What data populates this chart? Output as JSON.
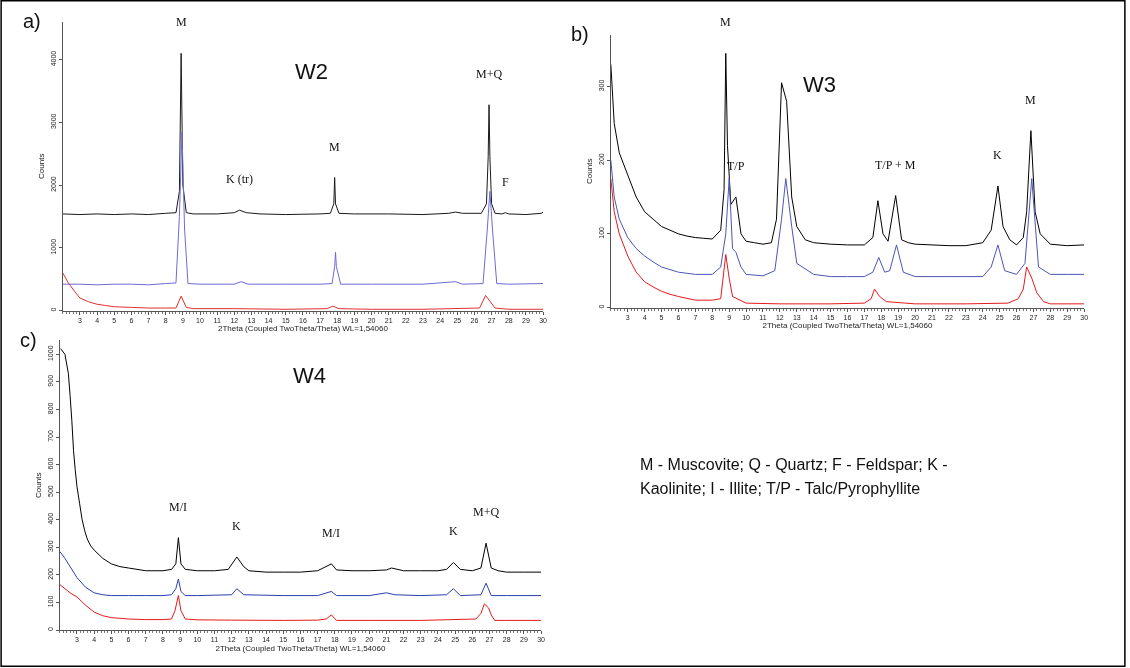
{
  "chart_data": [
    {
      "type": "line",
      "title": "W2",
      "xlabel": "2Theta (Coupled TwoTheta/Theta) WL=1,54060",
      "ylabel": "Counts",
      "xlim": [
        2,
        30
      ],
      "xticks": [
        3,
        4,
        5,
        6,
        7,
        8,
        9,
        10,
        11,
        12,
        13,
        14,
        15,
        16,
        17,
        18,
        19,
        20,
        21,
        22,
        23,
        24,
        25,
        26,
        27,
        28,
        29,
        30
      ],
      "ylim": [
        0,
        4600
      ],
      "yticks": [
        0,
        1000,
        2000,
        3000,
        4000
      ],
      "annotations": [
        "a)",
        {
          "text": "M",
          "x": 8.9,
          "y": 4100
        },
        {
          "text": "K (tr)",
          "x": 12.3,
          "y": 1600
        },
        {
          "text": "M",
          "x": 17.85,
          "y": 2120
        },
        {
          "text": "M+Q",
          "x": 26.85,
          "y": 3280
        },
        {
          "text": "F",
          "x": 27.8,
          "y": 1560
        }
      ],
      "series": [
        {
          "color": "#1a1a1a",
          "x": [
            2.0,
            3,
            4,
            5,
            6,
            7,
            8,
            8.6,
            8.8,
            8.9,
            9.0,
            9.2,
            9.6,
            11,
            12,
            12.3,
            12.7,
            13.5,
            15,
            17,
            17.6,
            17.8,
            17.85,
            17.9,
            18.1,
            19,
            21,
            23,
            24.5,
            24.9,
            25.3,
            26.4,
            26.7,
            26.8,
            26.85,
            26.9,
            27.0,
            27.2,
            27.6,
            27.8,
            28,
            29,
            29.9,
            30
          ],
          "values": [
            1540,
            1530,
            1540,
            1530,
            1540,
            1530,
            1550,
            1560,
            1900,
            4100,
            2000,
            1560,
            1540,
            1540,
            1560,
            1600,
            1560,
            1540,
            1530,
            1540,
            1550,
            1700,
            2120,
            1700,
            1550,
            1540,
            1540,
            1530,
            1550,
            1570,
            1550,
            1550,
            1700,
            2450,
            3280,
            2450,
            1700,
            1550,
            1540,
            1560,
            1540,
            1530,
            1550,
            1570
          ]
        },
        {
          "color": "#6b6bd6",
          "x": [
            2.0,
            3,
            4,
            5,
            6,
            7,
            8,
            8.6,
            8.8,
            8.95,
            9.1,
            9.3,
            10,
            12,
            12.4,
            12.8,
            15,
            17,
            17.7,
            17.85,
            17.9,
            17.95,
            18.2,
            20,
            23,
            24.9,
            25.3,
            26.5,
            26.75,
            26.9,
            27.05,
            27.3,
            28,
            30
          ],
          "values": [
            420,
            420,
            410,
            420,
            420,
            410,
            430,
            440,
            1500,
            2850,
            1300,
            430,
            420,
            420,
            460,
            420,
            420,
            420,
            430,
            700,
            930,
            700,
            420,
            420,
            420,
            460,
            420,
            430,
            1300,
            1900,
            1300,
            430,
            420,
            430
          ]
        },
        {
          "color": "#e0302e",
          "x": [
            2.0,
            2.3,
            2.7,
            3,
            3.5,
            4,
            4.5,
            5,
            6,
            7,
            8,
            8.6,
            8.9,
            9.2,
            9.6,
            12,
            15,
            17.4,
            17.75,
            18.1,
            20,
            23,
            26.3,
            26.65,
            26.9,
            27.2,
            28,
            30
          ],
          "values": [
            600,
            450,
            300,
            200,
            140,
            100,
            80,
            60,
            50,
            40,
            40,
            40,
            230,
            50,
            30,
            30,
            20,
            30,
            70,
            30,
            20,
            20,
            40,
            240,
            150,
            40,
            20,
            20
          ]
        }
      ]
    },
    {
      "type": "line",
      "title": "W3",
      "xlabel": "2Theta (Coupled TwoTheta/Theta) WL=1,54060",
      "ylabel": "Counts",
      "xlim": [
        2,
        30
      ],
      "xticks": [
        3,
        4,
        5,
        6,
        7,
        8,
        9,
        10,
        11,
        12,
        13,
        14,
        15,
        16,
        17,
        18,
        19,
        20,
        21,
        22,
        23,
        24,
        25,
        26,
        27,
        28,
        29,
        30
      ],
      "ylim": [
        0,
        370
      ],
      "yticks": [
        0,
        100,
        200,
        300
      ],
      "annotations": [
        "b)",
        {
          "text": "M",
          "x": 8.8,
          "y": 345
        },
        {
          "text": "T/P",
          "x": 9.4,
          "y": 150
        },
        {
          "text": "T/P + M",
          "x": 18.85,
          "y": 152
        },
        {
          "text": "K",
          "x": 24.9,
          "y": 165
        },
        {
          "text": "M",
          "x": 26.85,
          "y": 240
        }
      ],
      "series": [
        {
          "color": "#000000",
          "x": [
            2.0,
            2.2,
            2.5,
            3,
            3.5,
            4,
            4.5,
            5,
            5.5,
            6,
            6.5,
            7,
            7.5,
            8,
            8.5,
            8.7,
            8.8,
            8.9,
            9.1,
            9.4,
            9.7,
            10,
            10.5,
            11,
            11.5,
            11.8,
            12.1,
            12.4,
            12.7,
            13,
            13.5,
            14,
            15,
            16,
            17,
            17.5,
            17.8,
            18.1,
            18.4,
            18.85,
            19.2,
            19.6,
            20,
            21,
            22,
            23,
            24,
            24.5,
            24.9,
            25.2,
            25.6,
            26,
            26.4,
            26.6,
            26.85,
            27.1,
            27.4,
            28,
            29,
            30
          ],
          "values": [
            330,
            250,
            210,
            180,
            150,
            130,
            120,
            110,
            105,
            100,
            97,
            95,
            94,
            93,
            105,
            160,
            345,
            220,
            140,
            150,
            100,
            90,
            88,
            86,
            88,
            120,
            305,
            280,
            150,
            110,
            92,
            88,
            86,
            85,
            85,
            95,
            145,
            100,
            90,
            152,
            92,
            88,
            86,
            85,
            84,
            84,
            88,
            105,
            165,
            110,
            92,
            85,
            95,
            130,
            240,
            130,
            100,
            86,
            84,
            85
          ]
        },
        {
          "color": "#4b56b8",
          "x": [
            2.0,
            2.2,
            2.5,
            3,
            3.5,
            4,
            4.5,
            5,
            6,
            7,
            8,
            8.5,
            8.8,
            9.0,
            9.2,
            9.4,
            9.7,
            10,
            11,
            11.7,
            12.1,
            12.35,
            12.7,
            13,
            14,
            15,
            16,
            17,
            17.5,
            17.85,
            18.2,
            18.5,
            18.9,
            19.3,
            20,
            21,
            22,
            23,
            24,
            24.5,
            24.9,
            25.3,
            26,
            26.5,
            26.9,
            27.3,
            28,
            29,
            30
          ],
          "values": [
            200,
            150,
            120,
            95,
            80,
            70,
            62,
            55,
            48,
            45,
            45,
            55,
            100,
            175,
            80,
            75,
            55,
            45,
            43,
            50,
            120,
            175,
            110,
            60,
            45,
            42,
            42,
            42,
            48,
            68,
            48,
            50,
            85,
            48,
            42,
            42,
            42,
            42,
            42,
            55,
            85,
            50,
            45,
            60,
            175,
            55,
            45,
            45,
            45
          ]
        },
        {
          "color": "#e31a1c",
          "x": [
            2.0,
            2.2,
            2.5,
            3,
            3.5,
            4,
            4.5,
            5,
            5.5,
            6,
            7,
            8,
            8.5,
            8.8,
            9.0,
            9.2,
            10,
            12,
            15,
            17,
            17.4,
            17.6,
            17.9,
            18.3,
            20,
            23,
            25.5,
            26.1,
            26.4,
            26.6,
            26.9,
            27.2,
            27.6,
            28,
            30
          ],
          "values": [
            175,
            130,
            100,
            70,
            48,
            35,
            28,
            22,
            18,
            15,
            10,
            10,
            12,
            72,
            40,
            15,
            6,
            5,
            5,
            6,
            12,
            25,
            15,
            8,
            5,
            5,
            6,
            12,
            25,
            55,
            40,
            20,
            8,
            5,
            5
          ]
        }
      ]
    },
    {
      "type": "line",
      "title": "W4",
      "xlabel": "2Theta (Coupled TwoTheta/Theta) WL=1,54060",
      "ylabel": "Counts",
      "xlim": [
        2,
        30
      ],
      "xticks": [
        3,
        4,
        5,
        6,
        7,
        8,
        9,
        10,
        11,
        12,
        13,
        14,
        15,
        16,
        17,
        18,
        19,
        20,
        21,
        22,
        23,
        24,
        25,
        26,
        27,
        28,
        29,
        30
      ],
      "ylim": [
        0,
        1050
      ],
      "yticks": [
        0,
        100,
        200,
        300,
        400,
        500,
        600,
        700,
        800,
        900,
        1000
      ],
      "annotations": [
        "c)",
        {
          "text": "M/I",
          "x": 8.9,
          "y": 335
        },
        {
          "text": "K",
          "x": 12.3,
          "y": 265
        },
        {
          "text": "M/I",
          "x": 17.8,
          "y": 240
        },
        {
          "text": "K",
          "x": 24.9,
          "y": 245
        },
        {
          "text": "M+Q",
          "x": 26.8,
          "y": 315
        }
      ],
      "series": [
        {
          "color": "#000000",
          "x": [
            2.05,
            2.3,
            2.5,
            2.6,
            2.7,
            2.8,
            2.9,
            3,
            3.15,
            3.3,
            3.45,
            3.6,
            3.8,
            4,
            4.5,
            5,
            5.5,
            6,
            7,
            8,
            8.5,
            8.75,
            8.9,
            9.05,
            9.3,
            10,
            11,
            11.8,
            12.3,
            12.7,
            13,
            14,
            15,
            16,
            17,
            17.8,
            18.1,
            19,
            20,
            21,
            21.3,
            22,
            23,
            24,
            24.5,
            24.9,
            25.3,
            26,
            26.5,
            26.8,
            27.1,
            27.5,
            28,
            29,
            30
          ],
          "values": [
            1020,
            1000,
            930,
            850,
            760,
            650,
            580,
            520,
            460,
            400,
            360,
            330,
            305,
            290,
            260,
            240,
            230,
            225,
            215,
            215,
            220,
            240,
            335,
            240,
            220,
            215,
            215,
            220,
            265,
            230,
            215,
            210,
            210,
            210,
            215,
            240,
            218,
            215,
            215,
            218,
            225,
            215,
            215,
            215,
            220,
            245,
            220,
            215,
            225,
            315,
            225,
            215,
            210,
            210,
            210
          ]
        },
        {
          "color": "#2a3fb0",
          "x": [
            2.0,
            2.3,
            2.6,
            3,
            3.5,
            4,
            4.5,
            5,
            6,
            7,
            8,
            8.5,
            8.75,
            8.9,
            9.05,
            9.3,
            10,
            12,
            12.3,
            12.7,
            15,
            17,
            17.8,
            18.1,
            20,
            21,
            21.5,
            23,
            24.5,
            24.9,
            25.3,
            26.5,
            26.8,
            27.1,
            28,
            30
          ],
          "values": [
            285,
            260,
            230,
            190,
            155,
            135,
            128,
            125,
            125,
            125,
            125,
            128,
            150,
            185,
            140,
            125,
            125,
            128,
            150,
            128,
            125,
            125,
            140,
            125,
            125,
            135,
            128,
            125,
            128,
            150,
            125,
            128,
            170,
            125,
            125,
            125
          ]
        },
        {
          "color": "#e31a1c",
          "x": [
            2.0,
            2.3,
            2.6,
            3,
            3.5,
            4,
            4.5,
            5,
            6,
            7,
            8,
            8.5,
            8.7,
            8.9,
            9.05,
            9.3,
            10,
            12,
            15,
            17,
            17.5,
            17.8,
            18.1,
            20,
            23,
            26.2,
            26.5,
            26.7,
            26.95,
            27.1,
            27.3,
            28,
            30
          ],
          "values": [
            165,
            150,
            135,
            120,
            90,
            65,
            52,
            45,
            40,
            38,
            38,
            40,
            70,
            125,
            70,
            40,
            37,
            36,
            35,
            36,
            40,
            55,
            35,
            35,
            35,
            40,
            60,
            95,
            80,
            55,
            35,
            35,
            35
          ]
        }
      ]
    },
    {
      "type": "other",
      "annotations": [
        "M - Muscovite; Q - Quartz; F - Feldspar; K -",
        "Kaolinite; I - Illite; T/P - Talc/Pyrophyllite"
      ]
    }
  ]
}
